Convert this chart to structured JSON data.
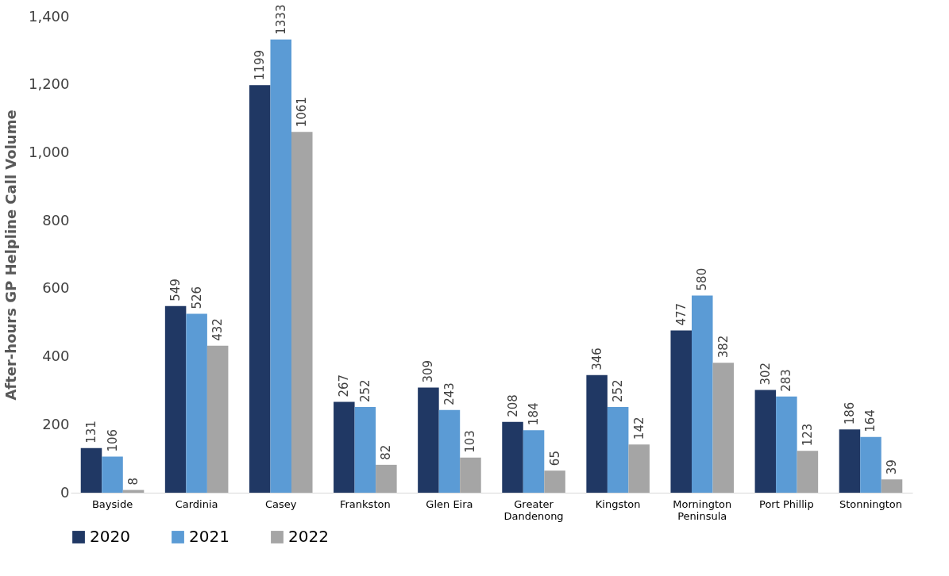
{
  "chart_data": {
    "type": "bar",
    "ylabel": "After-hours GP Helpline Call Volume",
    "categories": [
      "Bayside",
      "Cardinia",
      "Casey",
      "Frankston",
      "Glen Eira",
      "Greater Dandenong",
      "Kingston",
      "Mornington Peninsula",
      "Port Phillip",
      "Stonnington"
    ],
    "series": [
      {
        "name": "2020",
        "color": "#203864",
        "values": [
          131,
          549,
          1199,
          267,
          309,
          208,
          346,
          477,
          302,
          186
        ]
      },
      {
        "name": "2021",
        "color": "#5b9bd5",
        "values": [
          106,
          526,
          1333,
          252,
          243,
          184,
          252,
          580,
          283,
          164
        ]
      },
      {
        "name": "2022",
        "color": "#a5a5a5",
        "values": [
          8,
          432,
          1061,
          82,
          103,
          65,
          142,
          382,
          123,
          39
        ]
      }
    ],
    "ylim": [
      0,
      1400
    ],
    "yticks": [
      0,
      200,
      400,
      600,
      800,
      {
        "value": 1000,
        "label": "1,000"
      },
      {
        "value": 1200,
        "label": "1,200"
      },
      {
        "value": 1400,
        "label": "1,400"
      }
    ],
    "data_labels": true,
    "grid": false,
    "legend": "bottom"
  }
}
